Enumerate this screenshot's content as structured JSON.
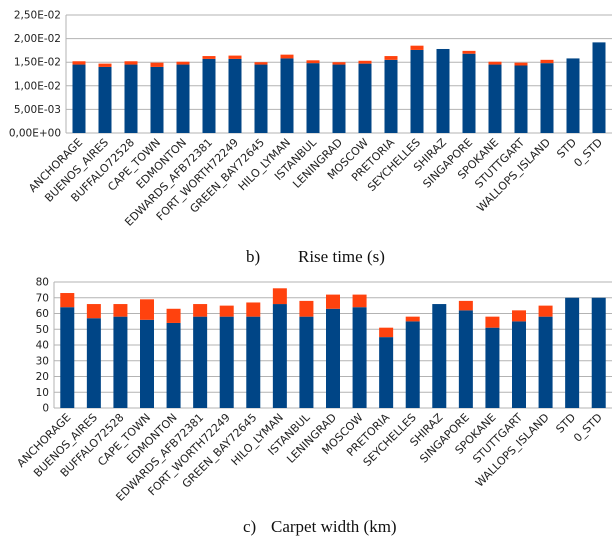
{
  "colors": {
    "base": "#004586",
    "increment": "#ff420e",
    "grid": "#b3b3b3",
    "axis": "#b3b3b3"
  },
  "categories": [
    "ANCHORAGE",
    "BUENOS_AIRES",
    "BUFFALO72528",
    "CAPE_TOWN",
    "EDMONTON",
    "EDWARDS_AFB72381",
    "FORT_WORTH72249",
    "GREEN_BAY72645",
    "HILO_LYMAN",
    "ISTANBUL",
    "LENINGRAD",
    "MOSCOW",
    "PRETORIA",
    "SEYCHELLES",
    "SHIRAZ",
    "SINGAPORE",
    "SPOKANE",
    "STUTTGART",
    "WALLOPS_ISLAND",
    "STD",
    "0_STD"
  ],
  "chart_data": [
    {
      "type": "bar",
      "stacked": true,
      "caption_letter": "b)",
      "caption": "Rise time (s)",
      "ylim": [
        0,
        0.025
      ],
      "yticks": [
        0,
        0.005,
        0.01,
        0.015,
        0.02,
        0.025
      ],
      "ytick_labels": [
        "0,00E+00",
        "5,00E-03",
        "1,00E-02",
        "1,50E-02",
        "2,00E-02",
        "2,50E-02"
      ],
      "grid": true,
      "legend": "none",
      "series": [
        {
          "color": "#004586",
          "values": [
            0.0145,
            0.014,
            0.0145,
            0.014,
            0.0145,
            0.0157,
            0.0157,
            0.0145,
            0.0158,
            0.0148,
            0.0145,
            0.0147,
            0.0155,
            0.0176,
            0.0178,
            0.0168,
            0.0145,
            0.0143,
            0.0148,
            0.0158,
            0.0192
          ]
        },
        {
          "color": "#ff420e",
          "values": [
            0.0007,
            0.0007,
            0.0007,
            0.0009,
            0.0006,
            0.0006,
            0.0007,
            0.0005,
            0.0008,
            0.0006,
            0.0005,
            0.0006,
            0.0008,
            0.0009,
            0,
            0.0006,
            0.0006,
            0.0006,
            0.0007,
            0,
            0
          ]
        }
      ]
    },
    {
      "type": "bar",
      "stacked": true,
      "caption_letter": "c)",
      "caption": "Carpet width (km)",
      "ylim": [
        0,
        80
      ],
      "yticks": [
        0,
        10,
        20,
        30,
        40,
        50,
        60,
        70,
        80
      ],
      "ytick_labels": [
        "0",
        "10",
        "20",
        "30",
        "40",
        "50",
        "60",
        "70",
        "80"
      ],
      "grid": true,
      "legend": "none",
      "series": [
        {
          "color": "#004586",
          "values": [
            64,
            57,
            58,
            56,
            54,
            58,
            58,
            58,
            66,
            58,
            63,
            64,
            45,
            55,
            66,
            62,
            51,
            55,
            58,
            70,
            70
          ]
        },
        {
          "color": "#ff420e",
          "values": [
            9,
            9,
            8,
            13,
            9,
            8,
            7,
            9,
            10,
            10,
            9,
            8,
            6,
            3,
            0,
            6,
            7,
            7,
            7,
            0,
            0
          ]
        }
      ]
    }
  ]
}
